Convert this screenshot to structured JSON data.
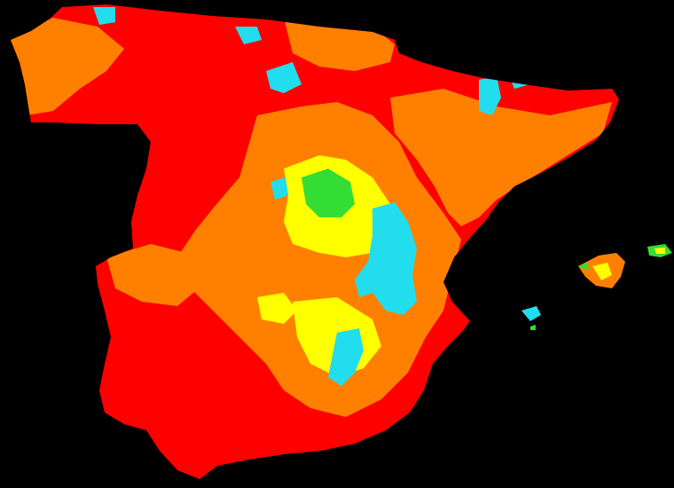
{
  "map": {
    "background_color": "#000000",
    "legend_colors": {
      "red": "#ff0000",
      "orange": "#ff8000",
      "yellow": "#ffff00",
      "green": "#33dd33",
      "cyan": "#22ddee"
    },
    "regions": [
      "iberian-peninsula",
      "balearic-majorca",
      "balearic-menorca",
      "balearic-ibiza"
    ]
  }
}
